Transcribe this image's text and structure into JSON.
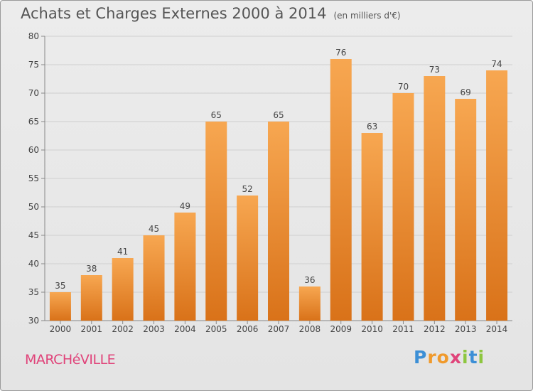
{
  "title": "Achats et Charges Externes 2000 à 2014",
  "subtitle": "(en milliers d'€)",
  "town": "MARCHéVILLE",
  "logo": {
    "letters": [
      "P",
      "r",
      "o",
      "x",
      "i",
      "t",
      "i"
    ],
    "colors": [
      "#3c8fd6",
      "#f09a2c",
      "#f09a2c",
      "#e0447a",
      "#8dc63f",
      "#3c8fd6",
      "#8dc63f"
    ]
  },
  "colors": {
    "bar_top": "#f7a751",
    "bar_bottom": "#d97219",
    "grid": "#cfcfcf",
    "axis_text": "#444444",
    "label_text": "#444444"
  },
  "chart_data": {
    "type": "bar",
    "categories": [
      "2000",
      "2001",
      "2002",
      "2003",
      "2004",
      "2005",
      "2006",
      "2007",
      "2008",
      "2009",
      "2010",
      "2011",
      "2012",
      "2013",
      "2014"
    ],
    "values": [
      35,
      38,
      41,
      45,
      49,
      65,
      52,
      65,
      36,
      76,
      63,
      70,
      73,
      69,
      74
    ],
    "data_labels": [
      "35",
      "38",
      "41",
      "45",
      "49",
      "65",
      "52",
      "65",
      "36",
      "76",
      "63",
      "70",
      "73",
      "69",
      "74"
    ],
    "ylim": [
      30,
      80
    ],
    "yticks": [
      30,
      35,
      40,
      45,
      50,
      55,
      60,
      65,
      70,
      75,
      80
    ],
    "ytick_labels": [
      "30",
      "35",
      "40",
      "45",
      "50",
      "55",
      "60",
      "65",
      "70",
      "75",
      "80"
    ],
    "grid": true
  }
}
